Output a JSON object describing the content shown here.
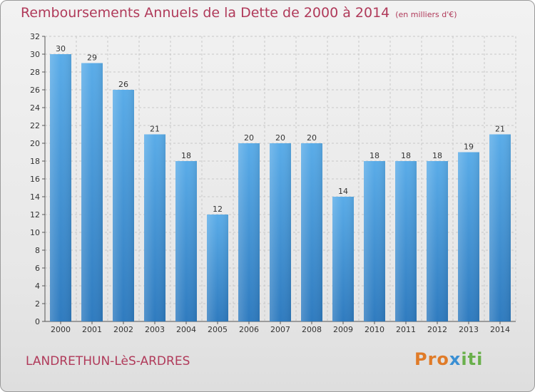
{
  "chart_data": {
    "type": "bar",
    "title": "Remboursements Annuels de la Dette de 2000 à 2014",
    "unit_note": "(en milliers d'€)",
    "categories": [
      "2000",
      "2001",
      "2002",
      "2003",
      "2004",
      "2005",
      "2006",
      "2007",
      "2008",
      "2009",
      "2010",
      "2011",
      "2012",
      "2013",
      "2014"
    ],
    "values": [
      30,
      29,
      26,
      21,
      18,
      12,
      20,
      20,
      20,
      14,
      18,
      18,
      18,
      19,
      21
    ],
    "ylim": [
      0,
      32
    ],
    "yticks": [
      0,
      2,
      4,
      6,
      8,
      10,
      12,
      14,
      16,
      18,
      20,
      22,
      24,
      26,
      28,
      30,
      32
    ],
    "grid": true,
    "bar_color_top": "#5aace8",
    "bar_color_bottom": "#2f7bbf"
  },
  "footer": {
    "commune": "LANDRETHUN-LèS-ARDRES",
    "logo": [
      "Pro",
      "x",
      "iti"
    ]
  },
  "colors": {
    "title": "#b03a5a",
    "grid": "#c8c8c8"
  }
}
